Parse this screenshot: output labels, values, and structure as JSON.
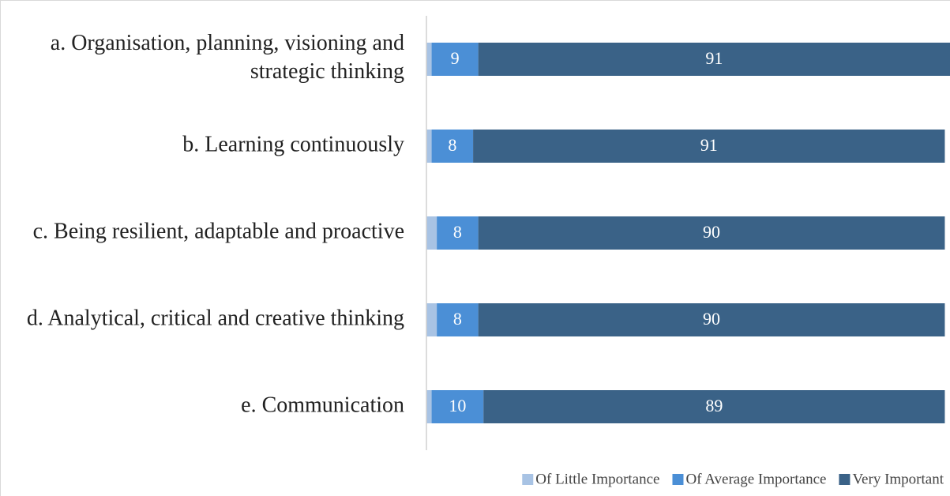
{
  "chart_data": {
    "type": "stacked_bar_horizontal",
    "categories": [
      "a. Organisation, planning, visioning and strategic thinking",
      "b. Learning continuously",
      "c. Being resilient, adaptable and proactive",
      "d. Analytical, critical and creative thinking",
      "e. Communication"
    ],
    "series": [
      {
        "name": "Of Little Importance",
        "color": "#a8c3e4",
        "values": [
          1,
          1,
          2,
          2,
          1
        ]
      },
      {
        "name": "Of Average Importance",
        "color": "#4b8fd6",
        "values": [
          9,
          8,
          8,
          8,
          10
        ]
      },
      {
        "name": "Very Important",
        "color": "#3a6287",
        "values": [
          91,
          91,
          90,
          90,
          89
        ]
      }
    ],
    "xlim": [
      0,
      101
    ],
    "legend": "bottom-right"
  }
}
